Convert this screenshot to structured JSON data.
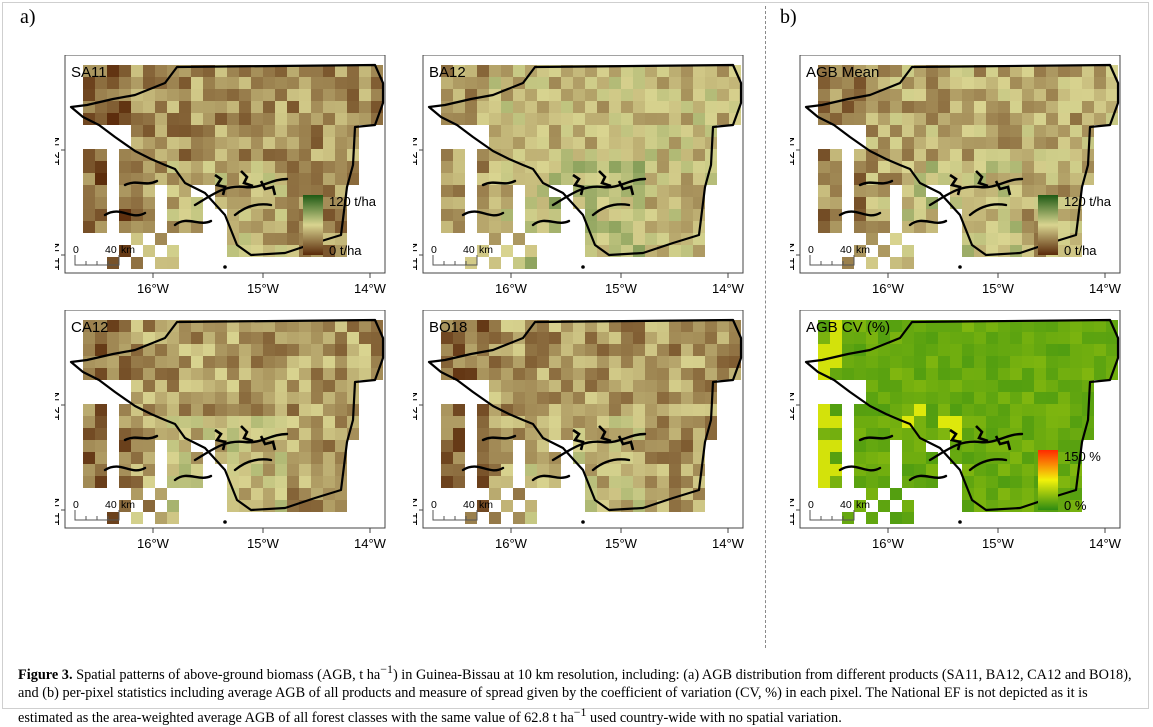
{
  "panels": {
    "a_label": "a)",
    "b_label": "b)"
  },
  "maps": [
    {
      "title": "SA11",
      "palette": "biomass",
      "mean": 0.3,
      "legend": true,
      "legend_top": "120 t/ha",
      "legend_bottom": "0 t/ha"
    },
    {
      "title": "BA12",
      "palette": "biomass",
      "mean": 0.45,
      "legend": false,
      "legend_top": "",
      "legend_bottom": ""
    },
    {
      "title": "AGB Mean",
      "palette": "biomass",
      "mean": 0.38,
      "legend": true,
      "legend_top": "120 t/ha",
      "legend_bottom": "0 t/ha"
    },
    {
      "title": "CA12",
      "palette": "biomass",
      "mean": 0.34,
      "legend": false,
      "legend_top": "",
      "legend_bottom": ""
    },
    {
      "title": "BO18",
      "palette": "biomass",
      "mean": 0.32,
      "legend": false,
      "legend_top": "",
      "legend_bottom": ""
    },
    {
      "title": "AGB CV (%)",
      "palette": "cv",
      "mean": 0.15,
      "legend": true,
      "legend_top": "150 %",
      "legend_bottom": "0 %"
    }
  ],
  "axes": {
    "x_ticks": [
      "16°W",
      "15°W",
      "14°W"
    ],
    "y_ticks": [
      "12°N",
      "11°N"
    ]
  },
  "scalebar": {
    "zero": "0",
    "end": "40",
    "unit": "km"
  },
  "colors": {
    "biomass_low": "#5a2a0a",
    "biomass_mid": "#d9d490",
    "biomass_high": "#1e5a14",
    "cv_low": "#2e8b12",
    "cv_mid": "#f2f20a",
    "cv_high": "#ff2a00"
  },
  "caption": {
    "label": "Figure 3.",
    "line1": "Spatial patterns of above-ground biomass (AGB, t ha",
    "unit_exp": "−1",
    "line1b": ") in Guinea-Bissau at 10 km resolution, including: (a) AGB distribution from different products (SA11, BA12, CA12 and BO18), and (b) per-pixel statistics including average AGB of all products and measure of spread given by the coefficient of variation (CV, %) in each pixel. The National EF is not depicted as it is estimated as the area-weighted average AGB of all forest classes with the same value of 62.8 t ha",
    "unit_exp2": "−1",
    "line2": " used country-wide with no spatial variation."
  }
}
